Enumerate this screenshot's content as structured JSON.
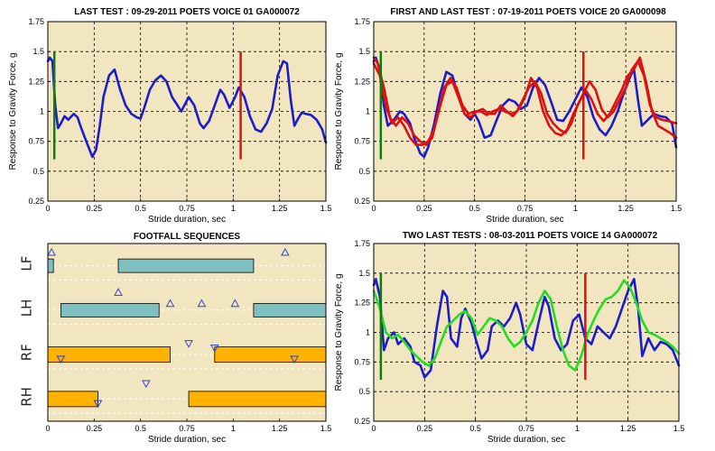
{
  "chart_data": [
    {
      "type": "line",
      "title": "LAST TEST : 09-29-2011 POETS VOICE 01 GA000072",
      "xlabel": "Stride duration, sec",
      "ylabel": "Response to Gravity Force, g",
      "xlim": [
        0,
        1.5
      ],
      "ylim": [
        0.25,
        1.75
      ],
      "xticks": [
        0,
        0.25,
        0.5,
        0.75,
        1,
        1.25,
        1.5
      ],
      "xtick_labels": [
        "0",
        "0.25",
        "0.5",
        "0.75",
        "1",
        "1.25",
        "1.5"
      ],
      "yticks": [
        0.25,
        0.5,
        0.75,
        1,
        1.25,
        1.5,
        1.75
      ],
      "ytick_labels": [
        "0.25",
        "0.5",
        "0.75",
        "1",
        "1.25",
        "1.5",
        "1.75"
      ],
      "grid": true,
      "background": "#f2e6c0",
      "series": [
        {
          "color": "#1c1ccc",
          "x": [
            0,
            0.01,
            0.025,
            0.04,
            0.055,
            0.07,
            0.09,
            0.11,
            0.14,
            0.16,
            0.18,
            0.21,
            0.24,
            0.26,
            0.28,
            0.3,
            0.33,
            0.36,
            0.39,
            0.42,
            0.45,
            0.48,
            0.5,
            0.52,
            0.55,
            0.58,
            0.61,
            0.64,
            0.67,
            0.7,
            0.72,
            0.74,
            0.76,
            0.79,
            0.82,
            0.84,
            0.87,
            0.9,
            0.93,
            0.95,
            0.98,
            1.01,
            1.03,
            1.06,
            1.09,
            1.12,
            1.15,
            1.18,
            1.21,
            1.24,
            1.27,
            1.29,
            1.31,
            1.33,
            1.35,
            1.37,
            1.39,
            1.42,
            1.45,
            1.48,
            1.5
          ],
          "y": [
            1.42,
            1.45,
            1.42,
            1.05,
            0.86,
            0.9,
            0.96,
            0.93,
            0.98,
            0.95,
            0.86,
            0.74,
            0.62,
            0.68,
            0.88,
            1.12,
            1.3,
            1.35,
            1.18,
            1.05,
            0.98,
            0.95,
            0.94,
            1.03,
            1.18,
            1.26,
            1.3,
            1.25,
            1.12,
            1.05,
            1.0,
            1.06,
            1.12,
            1.05,
            0.9,
            0.86,
            0.92,
            1.05,
            1.18,
            1.14,
            1.03,
            1.12,
            1.2,
            1.12,
            0.96,
            0.85,
            0.83,
            0.9,
            1.02,
            1.3,
            1.42,
            1.4,
            1.1,
            0.88,
            0.94,
            0.99,
            0.98,
            0.97,
            0.93,
            0.85,
            0.74
          ]
        }
      ],
      "markers": [
        {
          "x": 0.035,
          "y0": 0.6,
          "y1": 1.5,
          "color": "#117a11"
        },
        {
          "x": 1.04,
          "y0": 0.6,
          "y1": 1.5,
          "color": "#dd1111"
        }
      ]
    },
    {
      "type": "line",
      "title": "FIRST AND LAST TEST : 07-19-2011 POETS VOICE 20 GA000098",
      "xlabel": "Stride duration, sec",
      "ylabel": "Response to Gravity Force, g",
      "xlim": [
        0,
        1.5
      ],
      "ylim": [
        0.25,
        1.75
      ],
      "xticks": [
        0,
        0.25,
        0.5,
        0.75,
        1,
        1.25,
        1.5
      ],
      "xtick_labels": [
        "0",
        "0.25",
        "0.5",
        "0.75",
        "1",
        "1.25",
        "1.5"
      ],
      "yticks": [
        0.25,
        0.5,
        0.75,
        1,
        1.25,
        1.5,
        1.75
      ],
      "ytick_labels": [
        "0.25",
        "0.5",
        "0.75",
        "1",
        "1.25",
        "1.5",
        "1.75"
      ],
      "grid": true,
      "background": "#f2e6c0",
      "series": [
        {
          "color": "#1c1ccc",
          "x": [
            0,
            0.01,
            0.03,
            0.05,
            0.07,
            0.1,
            0.13,
            0.15,
            0.18,
            0.2,
            0.23,
            0.25,
            0.27,
            0.3,
            0.33,
            0.36,
            0.39,
            0.42,
            0.45,
            0.48,
            0.5,
            0.52,
            0.55,
            0.58,
            0.61,
            0.64,
            0.67,
            0.7,
            0.73,
            0.76,
            0.79,
            0.82,
            0.85,
            0.88,
            0.91,
            0.94,
            0.97,
            1.0,
            1.03,
            1.06,
            1.09,
            1.12,
            1.15,
            1.18,
            1.21,
            1.24,
            1.27,
            1.29,
            1.31,
            1.33,
            1.36,
            1.39,
            1.42,
            1.45,
            1.48,
            1.5
          ],
          "y": [
            1.42,
            1.45,
            1.35,
            1.05,
            0.88,
            0.93,
            1.0,
            0.98,
            0.9,
            0.78,
            0.65,
            0.62,
            0.7,
            0.9,
            1.15,
            1.33,
            1.3,
            1.12,
            0.98,
            0.93,
            0.98,
            0.92,
            0.78,
            0.8,
            0.93,
            1.05,
            1.1,
            1.08,
            1.02,
            1.05,
            1.2,
            1.28,
            1.22,
            1.08,
            0.93,
            0.92,
            1.0,
            1.1,
            1.2,
            1.12,
            0.95,
            0.85,
            0.8,
            0.88,
            1.0,
            1.15,
            1.28,
            1.36,
            1.1,
            0.88,
            0.93,
            0.98,
            0.96,
            0.95,
            0.9,
            0.7
          ]
        },
        {
          "color": "#dd1111",
          "x": [
            0,
            0.02,
            0.05,
            0.08,
            0.11,
            0.14,
            0.17,
            0.2,
            0.23,
            0.26,
            0.29,
            0.32,
            0.35,
            0.38,
            0.41,
            0.44,
            0.47,
            0.5,
            0.53,
            0.56,
            0.59,
            0.62,
            0.65,
            0.68,
            0.71,
            0.74,
            0.77,
            0.8,
            0.83,
            0.86,
            0.89,
            0.92,
            0.95,
            0.98,
            1.01,
            1.04,
            1.07,
            1.1,
            1.13,
            1.16,
            1.19,
            1.22,
            1.25,
            1.28,
            1.31,
            1.34,
            1.37,
            1.4,
            1.43,
            1.46,
            1.5
          ],
          "y": [
            1.45,
            1.4,
            1.2,
            0.95,
            0.88,
            0.95,
            0.9,
            0.8,
            0.75,
            0.72,
            0.78,
            1.0,
            1.2,
            1.28,
            1.2,
            1.05,
            0.98,
            1.0,
            1.0,
            0.97,
            1.0,
            1.02,
            1.0,
            0.98,
            1.0,
            1.1,
            1.2,
            1.25,
            1.15,
            0.98,
            0.9,
            0.85,
            0.82,
            0.9,
            1.05,
            1.15,
            1.25,
            1.18,
            1.02,
            0.95,
            1.0,
            1.1,
            1.2,
            1.35,
            1.42,
            1.3,
            1.05,
            0.95,
            0.93,
            0.92,
            0.9
          ]
        },
        {
          "color": "#dd1111",
          "x": [
            0,
            0.03,
            0.06,
            0.09,
            0.12,
            0.15,
            0.18,
            0.21,
            0.24,
            0.27,
            0.3,
            0.33,
            0.36,
            0.39,
            0.42,
            0.45,
            0.48,
            0.51,
            0.54,
            0.57,
            0.6,
            0.63,
            0.66,
            0.69,
            0.72,
            0.75,
            0.78,
            0.81,
            0.84,
            0.87,
            0.9,
            0.93,
            0.96,
            0.99,
            1.02,
            1.05,
            1.08,
            1.11,
            1.14,
            1.17,
            1.2,
            1.23,
            1.26,
            1.29,
            1.32,
            1.35,
            1.38,
            1.41,
            1.44,
            1.47,
            1.5
          ],
          "y": [
            1.4,
            1.3,
            1.05,
            0.9,
            0.95,
            0.88,
            0.78,
            0.72,
            0.72,
            0.75,
            0.85,
            1.05,
            1.22,
            1.25,
            1.12,
            0.98,
            0.95,
            1.0,
            1.02,
            0.98,
            0.98,
            1.05,
            1.0,
            0.96,
            1.02,
            1.12,
            1.28,
            1.2,
            1.0,
            0.88,
            0.82,
            0.8,
            0.85,
            0.98,
            1.08,
            1.18,
            1.1,
            0.98,
            0.92,
            0.98,
            1.08,
            1.18,
            1.3,
            1.35,
            1.45,
            1.25,
            1.0,
            0.88,
            0.85,
            0.82,
            0.78
          ]
        }
      ],
      "markers": [
        {
          "x": 0.035,
          "y0": 0.6,
          "y1": 1.5,
          "color": "#117a11"
        },
        {
          "x": 1.04,
          "y0": 0.6,
          "y1": 1.5,
          "color": "#dd1111"
        }
      ]
    },
    {
      "type": "footfall",
      "title": "FOOTFALL SEQUENCES",
      "xlabel": "Stride duration, sec",
      "xlim": [
        0,
        1.5
      ],
      "xticks": [
        0,
        0.25,
        0.5,
        0.75,
        1,
        1.25,
        1.5
      ],
      "xtick_labels": [
        "0",
        "0.25",
        "0.5",
        "0.75",
        "1",
        "1.25",
        "1.5"
      ],
      "lanes": [
        "LF",
        "LH",
        "RF",
        "RH"
      ],
      "background": "#f2e6c0",
      "bars": [
        {
          "lane": 0,
          "start": 0.0,
          "end": 0.03,
          "color": "#7fc0c0"
        },
        {
          "lane": 0,
          "start": 0.38,
          "end": 1.11,
          "color": "#7fc0c0"
        },
        {
          "lane": 1,
          "start": 0.07,
          "end": 0.6,
          "color": "#7fc0c0"
        },
        {
          "lane": 1,
          "start": 1.11,
          "end": 1.5,
          "color": "#7fc0c0"
        },
        {
          "lane": 2,
          "start": 0.0,
          "end": 0.66,
          "color": "#ffb300"
        },
        {
          "lane": 2,
          "start": 0.9,
          "end": 1.5,
          "color": "#ffb300"
        },
        {
          "lane": 3,
          "start": 0.0,
          "end": 0.27,
          "color": "#ffb300"
        },
        {
          "lane": 3,
          "start": 0.76,
          "end": 1.5,
          "color": "#ffb300"
        }
      ],
      "triangles": [
        {
          "x": 0.02,
          "lane": 0.2,
          "dir": "up"
        },
        {
          "x": 1.28,
          "lane": 0.2,
          "dir": "up"
        },
        {
          "x": 0.66,
          "lane": 1.35,
          "dir": "up"
        },
        {
          "x": 0.83,
          "lane": 1.35,
          "dir": "up"
        },
        {
          "x": 1.01,
          "lane": 1.35,
          "dir": "up"
        },
        {
          "x": 0.38,
          "lane": 1.1,
          "dir": "up"
        },
        {
          "x": 0.76,
          "lane": 2.25,
          "dir": "down"
        },
        {
          "x": 0.9,
          "lane": 2.35,
          "dir": "down"
        },
        {
          "x": 0.07,
          "lane": 2.6,
          "dir": "down"
        },
        {
          "x": 1.33,
          "lane": 2.6,
          "dir": "down"
        },
        {
          "x": 0.53,
          "lane": 3.15,
          "dir": "down"
        },
        {
          "x": 0.27,
          "lane": 3.6,
          "dir": "down"
        }
      ]
    },
    {
      "type": "line",
      "title": "TWO LAST TESTS : 08-03-2011 POETS VOICE 14 GA000072",
      "xlabel": "Stride duration, sec",
      "ylabel": "Response to Gravity Force, g",
      "xlim": [
        0,
        1.5
      ],
      "ylim": [
        0.25,
        1.75
      ],
      "xticks": [
        0,
        0.25,
        0.5,
        0.75,
        1,
        1.25,
        1.5
      ],
      "xtick_labels": [
        "0",
        "0.25",
        "0.5",
        "0.75",
        "1",
        "1.25",
        "1.5"
      ],
      "yticks": [
        0.25,
        0.5,
        0.75,
        1,
        1.25,
        1.5,
        1.75
      ],
      "ytick_labels": [
        "0.25",
        "0.5",
        "0.75",
        "1",
        "1.25",
        "1.5",
        "1.75"
      ],
      "grid": true,
      "background": "#f2e6c0",
      "series": [
        {
          "color": "#1c1ccc",
          "x": [
            0,
            0.01,
            0.03,
            0.05,
            0.07,
            0.1,
            0.12,
            0.15,
            0.18,
            0.2,
            0.23,
            0.25,
            0.28,
            0.31,
            0.34,
            0.36,
            0.38,
            0.41,
            0.43,
            0.45,
            0.48,
            0.5,
            0.53,
            0.56,
            0.58,
            0.61,
            0.64,
            0.67,
            0.7,
            0.72,
            0.75,
            0.78,
            0.81,
            0.84,
            0.86,
            0.89,
            0.92,
            0.95,
            0.98,
            1.01,
            1.04,
            1.07,
            1.1,
            1.13,
            1.16,
            1.19,
            1.22,
            1.25,
            1.28,
            1.3,
            1.32,
            1.35,
            1.38,
            1.41,
            1.44,
            1.47,
            1.5
          ],
          "y": [
            1.4,
            1.45,
            1.3,
            0.85,
            0.95,
            1.0,
            0.9,
            0.95,
            0.88,
            0.75,
            0.72,
            0.62,
            0.68,
            1.05,
            1.35,
            1.3,
            0.95,
            0.88,
            1.12,
            1.2,
            1.08,
            0.95,
            0.78,
            0.85,
            1.05,
            1.1,
            1.05,
            1.12,
            1.25,
            1.15,
            0.9,
            0.85,
            1.08,
            1.3,
            1.22,
            0.95,
            0.85,
            0.9,
            1.1,
            1.15,
            0.95,
            0.9,
            1.05,
            1.0,
            0.95,
            1.05,
            1.2,
            1.35,
            1.45,
            1.2,
            0.8,
            0.95,
            0.85,
            0.92,
            0.9,
            0.85,
            0.72
          ]
        },
        {
          "color": "#22dd22",
          "x": [
            0,
            0.03,
            0.06,
            0.09,
            0.12,
            0.15,
            0.18,
            0.21,
            0.24,
            0.27,
            0.3,
            0.33,
            0.36,
            0.39,
            0.42,
            0.45,
            0.48,
            0.51,
            0.54,
            0.57,
            0.6,
            0.63,
            0.66,
            0.69,
            0.72,
            0.75,
            0.78,
            0.81,
            0.84,
            0.87,
            0.9,
            0.93,
            0.96,
            0.99,
            1.02,
            1.05,
            1.08,
            1.11,
            1.14,
            1.17,
            1.2,
            1.23,
            1.26,
            1.29,
            1.32,
            1.35,
            1.38,
            1.41,
            1.44,
            1.47,
            1.5
          ],
          "y": [
            1.35,
            1.2,
            1.0,
            0.95,
            0.98,
            0.92,
            0.85,
            0.8,
            0.75,
            0.72,
            0.78,
            0.92,
            1.05,
            1.1,
            1.15,
            1.18,
            1.12,
            0.98,
            1.05,
            1.12,
            1.1,
            1.05,
            0.95,
            0.88,
            0.92,
            1.0,
            1.1,
            1.25,
            1.35,
            1.28,
            1.05,
            0.85,
            0.72,
            0.68,
            0.8,
            0.98,
            1.1,
            1.2,
            1.28,
            1.3,
            1.35,
            1.44,
            1.38,
            1.25,
            1.1,
            1.0,
            0.98,
            0.95,
            0.92,
            0.88,
            0.82
          ]
        }
      ],
      "markers": [
        {
          "x": 0.035,
          "y0": 0.6,
          "y1": 1.5,
          "color": "#117a11"
        },
        {
          "x": 1.04,
          "y0": 0.6,
          "y1": 1.5,
          "color": "#dd1111"
        }
      ]
    }
  ]
}
